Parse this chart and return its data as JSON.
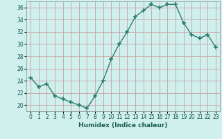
{
  "x": [
    0,
    1,
    2,
    3,
    4,
    5,
    6,
    7,
    8,
    9,
    10,
    11,
    12,
    13,
    14,
    15,
    16,
    17,
    18,
    19,
    20,
    21,
    22,
    23
  ],
  "y": [
    24.5,
    23.0,
    23.5,
    21.5,
    21.0,
    20.5,
    20.0,
    19.5,
    21.5,
    24.0,
    27.5,
    30.0,
    32.0,
    34.5,
    35.5,
    36.5,
    36.0,
    36.5,
    36.5,
    33.5,
    31.5,
    31.0,
    31.5,
    29.5
  ],
  "line_color": "#2e7d6e",
  "marker": "+",
  "marker_size": 4,
  "marker_lw": 1.2,
  "bg_color": "#cff0ec",
  "grid_color": "#c8a0a0",
  "xlabel": "Humidex (Indice chaleur)",
  "xlim": [
    -0.5,
    23.5
  ],
  "ylim": [
    19.0,
    37.0
  ],
  "yticks": [
    20,
    22,
    24,
    26,
    28,
    30,
    32,
    34,
    36
  ],
  "xticks": [
    0,
    1,
    2,
    3,
    4,
    5,
    6,
    7,
    8,
    9,
    10,
    11,
    12,
    13,
    14,
    15,
    16,
    17,
    18,
    19,
    20,
    21,
    22,
    23
  ],
  "xlabel_fontsize": 6.5,
  "tick_fontsize": 5.5,
  "line_width": 1.0,
  "spine_color": "#888888"
}
